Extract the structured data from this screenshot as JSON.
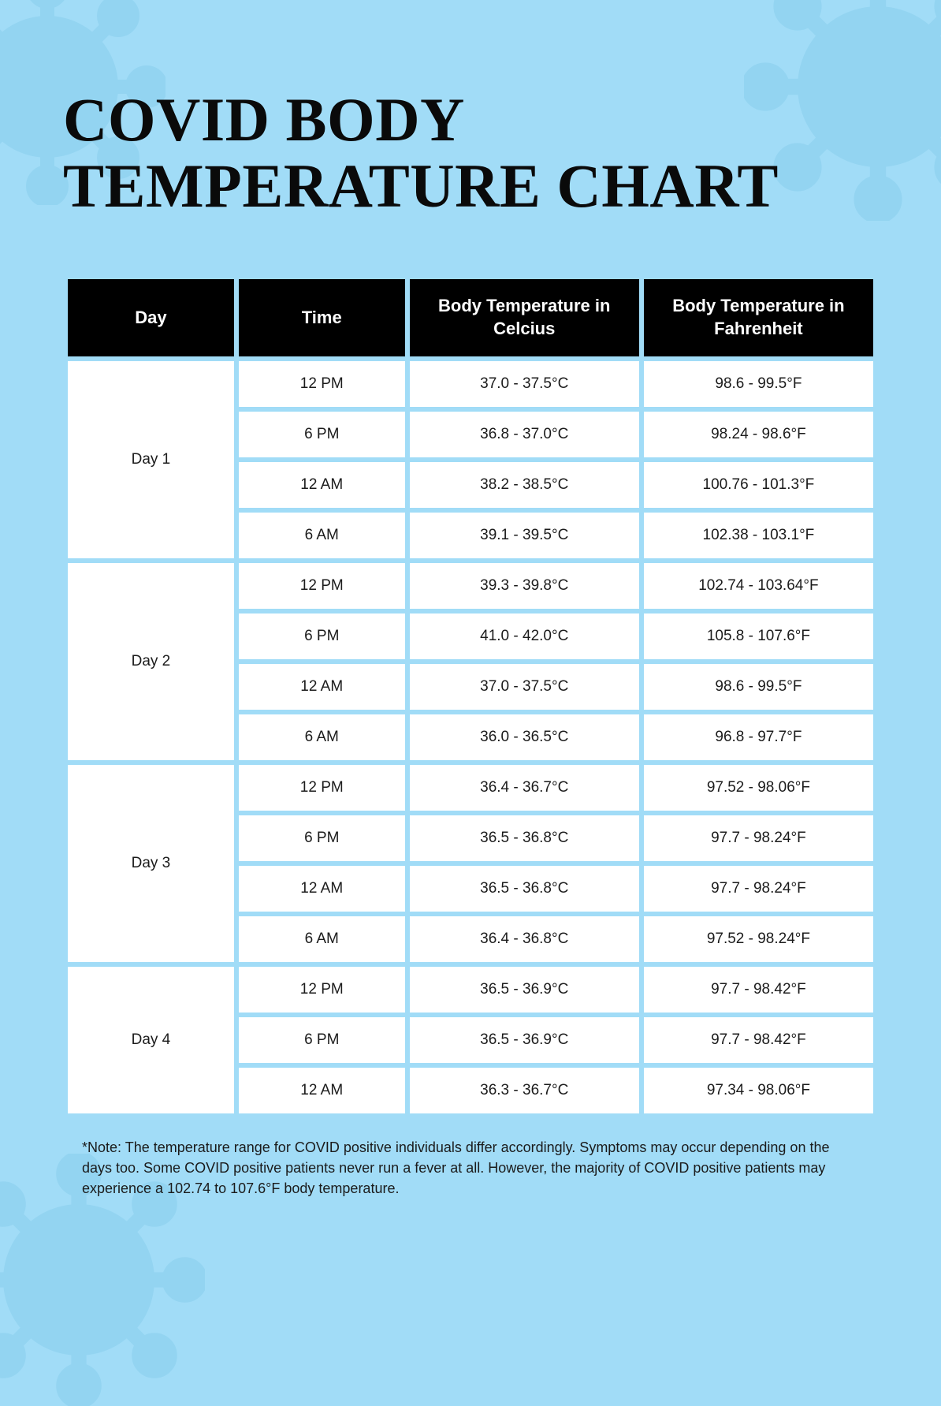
{
  "title_line1": "COVID BODY",
  "title_line2": "TEMPERATURE CHART",
  "columns": {
    "day": "Day",
    "time": "Time",
    "celsius": "Body Temperature in Celcius",
    "fahrenheit": "Body Temperature in Fahrenheit"
  },
  "days": [
    {
      "label": "Day 1",
      "readings": [
        {
          "time": "12 PM",
          "c": "37.0 - 37.5°C",
          "f": "98.6 - 99.5°F"
        },
        {
          "time": "6 PM",
          "c": "36.8 - 37.0°C",
          "f": "98.24 - 98.6°F"
        },
        {
          "time": "12 AM",
          "c": "38.2 - 38.5°C",
          "f": "100.76 - 101.3°F"
        },
        {
          "time": "6 AM",
          "c": "39.1 - 39.5°C",
          "f": "102.38 - 103.1°F"
        }
      ]
    },
    {
      "label": "Day 2",
      "readings": [
        {
          "time": "12 PM",
          "c": "39.3 - 39.8°C",
          "f": "102.74 - 103.64°F"
        },
        {
          "time": "6 PM",
          "c": "41.0 - 42.0°C",
          "f": "105.8 - 107.6°F"
        },
        {
          "time": "12 AM",
          "c": "37.0 - 37.5°C",
          "f": "98.6 - 99.5°F"
        },
        {
          "time": "6 AM",
          "c": "36.0 - 36.5°C",
          "f": "96.8 - 97.7°F"
        }
      ]
    },
    {
      "label": "Day 3",
      "readings": [
        {
          "time": "12 PM",
          "c": "36.4 - 36.7°C",
          "f": "97.52 - 98.06°F"
        },
        {
          "time": "6 PM",
          "c": "36.5 - 36.8°C",
          "f": "97.7 - 98.24°F"
        },
        {
          "time": "12 AM",
          "c": "36.5 - 36.8°C",
          "f": "97.7 - 98.24°F"
        },
        {
          "time": "6 AM",
          "c": "36.4 - 36.8°C",
          "f": "97.52 - 98.24°F"
        }
      ]
    },
    {
      "label": "Day 4",
      "readings": [
        {
          "time": "12 PM",
          "c": "36.5 - 36.9°C",
          "f": "97.7 - 98.42°F"
        },
        {
          "time": "6 PM",
          "c": "36.5 - 36.9°C",
          "f": "97.7 - 98.42°F"
        },
        {
          "time": "12 AM",
          "c": "36.3 - 36.7°C",
          "f": "97.34 - 98.06°F"
        }
      ]
    }
  ],
  "note": "*Note: The temperature range for COVID positive individuals differ accordingly. Symptoms may occur depending on the days too. Some COVID positive patients never run a fever at all. However, the majority of COVID positive patients may experience a 102.74 to 107.6°F body temperature.",
  "colors": {
    "background": "#a1dcf7",
    "header_bg": "#000000",
    "header_text": "#ffffff",
    "cell_bg": "#ffffff",
    "cell_text": "#1b1b1b",
    "virus_tint": "#7cc7e8"
  }
}
